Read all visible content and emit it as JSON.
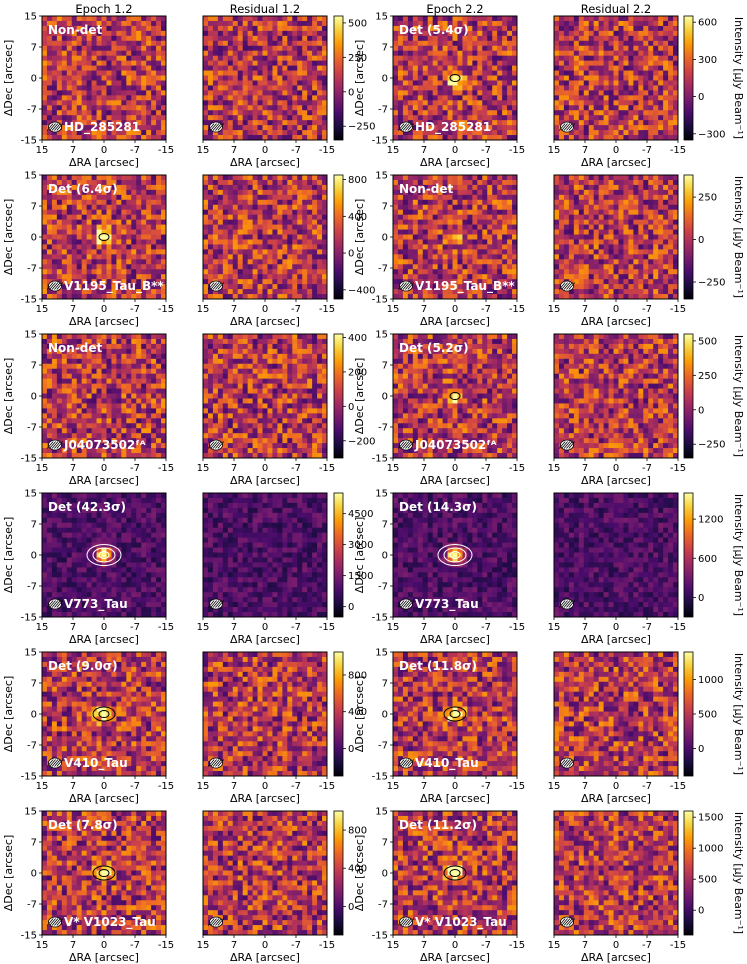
{
  "column_titles": [
    "Epoch 1.2",
    "Residual 1.2",
    "Epoch 2.2",
    "Residual 2.2"
  ],
  "axes": {
    "xlabel": "ΔRA [arcsec]",
    "ylabel": "ΔDec [arcsec]",
    "x_ticks": [
      "15",
      "7",
      "0",
      "-7",
      "-15"
    ],
    "y_ticks": [
      "15",
      "7",
      "0",
      "-7",
      "-15"
    ]
  },
  "colorbar_label": "Intensity [μJy Beam⁻¹]",
  "colormap": [
    "#000004",
    "#1b0c41",
    "#4a0c6b",
    "#781c6d",
    "#a52c60",
    "#cf4446",
    "#ed6925",
    "#fb9b06",
    "#f7d13d",
    "#fcffa4"
  ],
  "chart_data": {
    "type": "heatmap",
    "rows": [
      {
        "source": "HD_285281",
        "epoch1": {
          "status": "Non-det",
          "cbar": {
            "ticks": [
              -250,
              0,
              250,
              500
            ],
            "range": [
              -350,
              550
            ]
          },
          "peak": 0.0,
          "contours": 0
        },
        "epoch2": {
          "status": "Det (5.4σ)",
          "cbar": {
            "ticks": [
              -300,
              0,
              300,
              600
            ],
            "range": [
              -350,
              650
            ]
          },
          "peak": 0.8,
          "contours": 1
        }
      },
      {
        "source": "V1195_Tau_B**",
        "epoch1": {
          "status": "Det (6.4σ)",
          "cbar": {
            "ticks": [
              -400,
              0,
              400,
              800
            ],
            "range": [
              -500,
              850
            ]
          },
          "peak": 0.85,
          "contours": 1
        },
        "epoch2": {
          "status": "Non-det",
          "cbar": {
            "ticks": [
              -250,
              0,
              250
            ],
            "range": [
              -350,
              380
            ]
          },
          "peak": 0.3,
          "contours": 0
        }
      },
      {
        "source": "J04073502ᶠᴬ",
        "epoch1": {
          "status": "Non-det",
          "cbar": {
            "ticks": [
              -200,
              0,
              200,
              400
            ],
            "range": [
              -300,
              420
            ]
          },
          "peak": 0.0,
          "contours": 0
        },
        "epoch2": {
          "status": "Det (5.2σ)",
          "cbar": {
            "ticks": [
              -250,
              0,
              250,
              500
            ],
            "range": [
              -350,
              550
            ]
          },
          "peak": 0.7,
          "contours": 1
        }
      },
      {
        "source": "V773_Tau",
        "epoch1": {
          "status": "Det (42.3σ)",
          "cbar": {
            "ticks": [
              0,
              1500,
              3000,
              4500
            ],
            "range": [
              -500,
              5500
            ]
          },
          "peak": 1.0,
          "contours": 3
        },
        "epoch2": {
          "status": "Det (14.3σ)",
          "cbar": {
            "ticks": [
              0,
              600,
              1200
            ],
            "range": [
              -300,
              1600
            ]
          },
          "peak": 1.0,
          "contours": 3
        }
      },
      {
        "source": "V410_Tau",
        "epoch1": {
          "status": "Det (9.0σ)",
          "cbar": {
            "ticks": [
              0,
              400,
              800
            ],
            "range": [
              -300,
              1050
            ]
          },
          "peak": 0.9,
          "contours": 2
        },
        "epoch2": {
          "status": "Det (11.8σ)",
          "cbar": {
            "ticks": [
              0,
              500,
              1000
            ],
            "range": [
              -400,
              1400
            ]
          },
          "peak": 0.9,
          "contours": 2
        }
      },
      {
        "source": "V* V1023_Tau",
        "epoch1": {
          "status": "Det (7.8σ)",
          "cbar": {
            "ticks": [
              0,
              400,
              800
            ],
            "range": [
              -300,
              1000
            ]
          },
          "peak": 0.9,
          "contours": 2
        },
        "epoch2": {
          "status": "Det (11.2σ)",
          "cbar": {
            "ticks": [
              0,
              500,
              1000,
              1500
            ],
            "range": [
              -400,
              1600
            ]
          },
          "peak": 0.9,
          "contours": 2
        }
      }
    ]
  }
}
